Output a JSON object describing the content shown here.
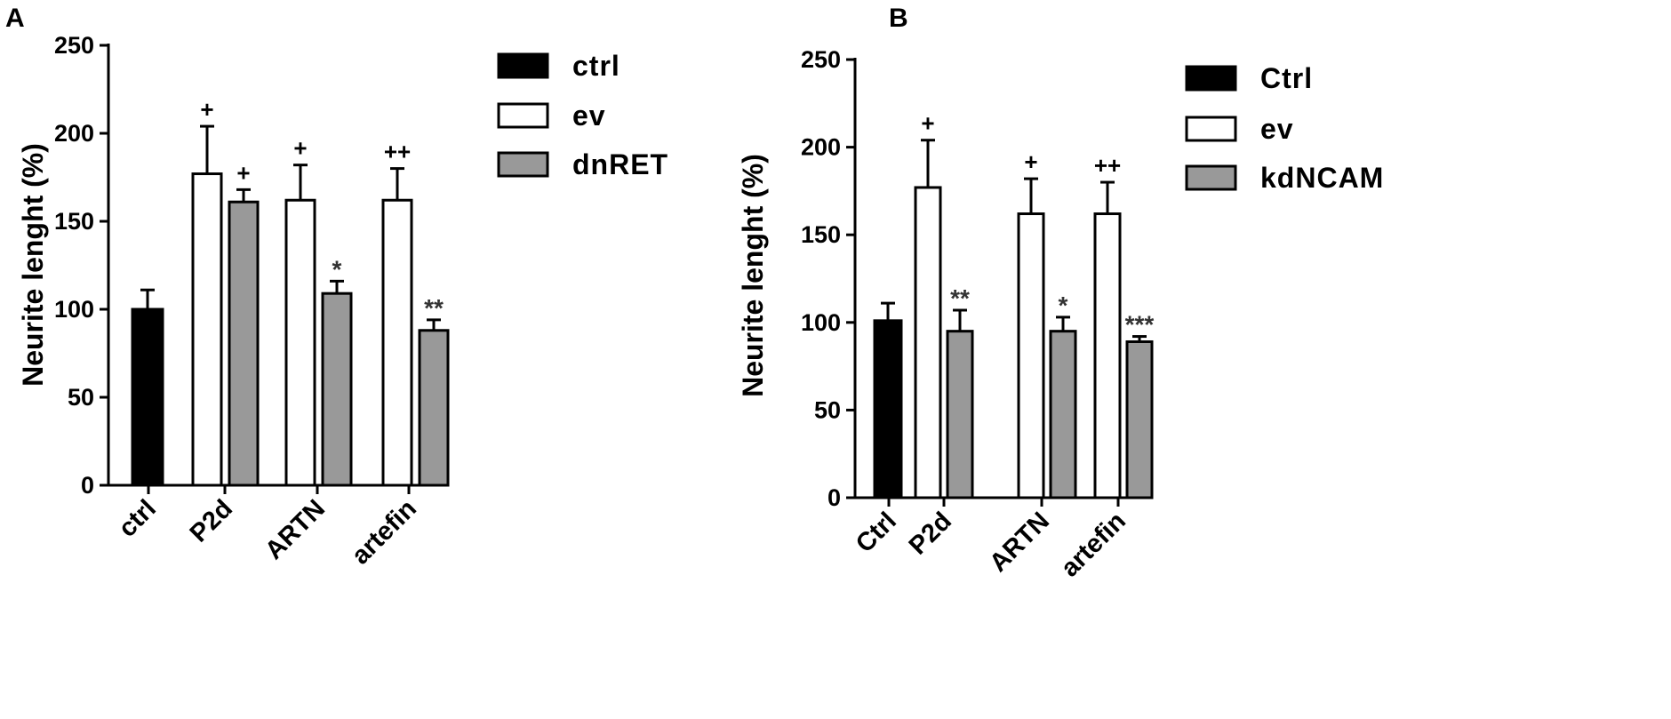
{
  "chart_data": [
    {
      "panel": "A",
      "type": "bar",
      "ylabel": "Neurite lenght (%)",
      "ylim": [
        0,
        250
      ],
      "yticks": [
        0,
        50,
        100,
        150,
        200,
        250
      ],
      "categories": [
        "ctrl",
        "P2d",
        "ARTN",
        "artefin"
      ],
      "legend": [
        "ctrl",
        "ev",
        "dnRET"
      ],
      "colors": {
        "ctrl": "#000000",
        "ev": "#ffffff",
        "dnRET": "#999999"
      },
      "bars": [
        {
          "category": "ctrl",
          "series": "ctrl",
          "value": 100,
          "error": 11,
          "sig": ""
        },
        {
          "category": "P2d",
          "series": "ev",
          "value": 177,
          "error": 27,
          "sig": "+"
        },
        {
          "category": "P2d",
          "series": "dnRET",
          "value": 161,
          "error": 7,
          "sig": "+"
        },
        {
          "category": "ARTN",
          "series": "ev",
          "value": 162,
          "error": 20,
          "sig": "+"
        },
        {
          "category": "ARTN",
          "series": "dnRET",
          "value": 109,
          "error": 7,
          "sig": "*"
        },
        {
          "category": "artefin",
          "series": "ev",
          "value": 162,
          "error": 18,
          "sig": "++"
        },
        {
          "category": "artefin",
          "series": "dnRET",
          "value": 88,
          "error": 6,
          "sig": "**"
        }
      ]
    },
    {
      "panel": "B",
      "type": "bar",
      "ylabel": "Neurite lenght (%)",
      "ylim": [
        0,
        250
      ],
      "yticks": [
        0,
        50,
        100,
        150,
        200,
        250
      ],
      "categories": [
        "Ctrl",
        "P2d",
        "ARTN",
        "artefin"
      ],
      "legend": [
        "Ctrl",
        "ev",
        "kdNCAM"
      ],
      "colors": {
        "Ctrl": "#000000",
        "ev": "#ffffff",
        "kdNCAM": "#999999"
      },
      "bars": [
        {
          "category": "Ctrl",
          "series": "Ctrl",
          "value": 101,
          "error": 10,
          "sig": ""
        },
        {
          "category": "P2d",
          "series": "ev",
          "value": 177,
          "error": 27,
          "sig": "+"
        },
        {
          "category": "P2d",
          "series": "kdNCAM",
          "value": 95,
          "error": 12,
          "sig": "**"
        },
        {
          "category": "ARTN",
          "series": "ev",
          "value": 162,
          "error": 20,
          "sig": "+"
        },
        {
          "category": "ARTN",
          "series": "kdNCAM",
          "value": 95,
          "error": 8,
          "sig": "*"
        },
        {
          "category": "artefin",
          "series": "ev",
          "value": 162,
          "error": 18,
          "sig": "++"
        },
        {
          "category": "artefin",
          "series": "kdNCAM",
          "value": 89,
          "error": 3,
          "sig": "***"
        }
      ]
    }
  ]
}
